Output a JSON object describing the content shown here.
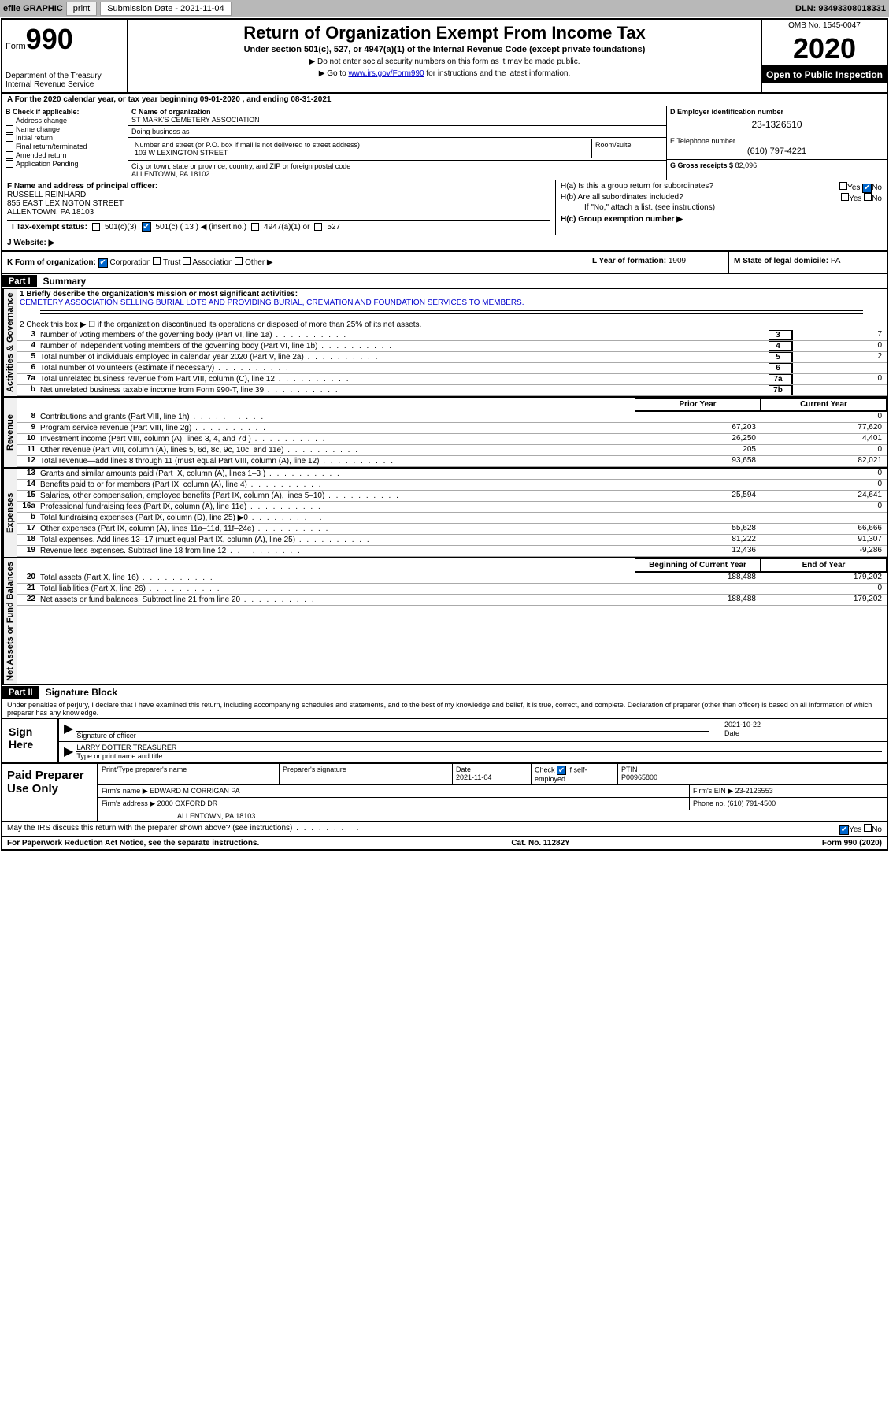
{
  "topbar": {
    "efile": "efile GRAPHIC",
    "print": "print",
    "subdate_label": "Submission Date - 2021-11-04",
    "dln": "DLN: 93493308018331"
  },
  "header": {
    "form_prefix": "Form",
    "form_num": "990",
    "dept": "Department of the Treasury Internal Revenue Service",
    "title": "Return of Organization Exempt From Income Tax",
    "sub": "Under section 501(c), 527, or 4947(a)(1) of the Internal Revenue Code (except private foundations)",
    "note1": "▶ Do not enter social security numbers on this form as it may be made public.",
    "note2_pre": "▶ Go to ",
    "note2_link": "www.irs.gov/Form990",
    "note2_post": " for instructions and the latest information.",
    "omb": "OMB No. 1545-0047",
    "year": "2020",
    "open": "Open to Public Inspection"
  },
  "row_a": "A For the 2020 calendar year, or tax year beginning 09-01-2020   , and ending 08-31-2021",
  "col_b": {
    "label": "B Check if applicable:",
    "items": [
      "Address change",
      "Name change",
      "Initial return",
      "Final return/terminated",
      "Amended return",
      "Application Pending"
    ]
  },
  "col_c": {
    "name_label": "C Name of organization",
    "name": "ST MARK'S CEMETERY ASSOCIATION",
    "dba_label": "Doing business as",
    "street_label": "Number and street (or P.O. box if mail is not delivered to street address)",
    "street": "103 W LEXINGTON STREET",
    "room_label": "Room/suite",
    "city_label": "City or town, state or province, country, and ZIP or foreign postal code",
    "city": "ALLENTOWN, PA  18102"
  },
  "col_d": {
    "ein_label": "D Employer identification number",
    "ein": "23-1326510",
    "phone_label": "E Telephone number",
    "phone": "(610) 797-4221",
    "gross_label": "G Gross receipts $",
    "gross": "82,096"
  },
  "section_f": {
    "label": "F  Name and address of principal officer:",
    "name": "RUSSELL REINHARD",
    "street": "855 EAST LEXINGTON STREET",
    "city": "ALLENTOWN, PA  18103"
  },
  "section_h": {
    "ha": "H(a)  Is this a group return for subordinates?",
    "hb": "H(b)  Are all subordinates included?",
    "hb_note": "If \"No,\" attach a list. (see instructions)",
    "hc": "H(c)  Group exemption number ▶",
    "yes": "Yes",
    "no": "No"
  },
  "tax_exempt": {
    "label": "I   Tax-exempt status:",
    "opt1": "501(c)(3)",
    "opt2": "501(c) ( 13 ) ◀ (insert no.)",
    "opt3": "4947(a)(1) or",
    "opt4": "527"
  },
  "website": "J   Website: ▶",
  "section_k": {
    "label": "K Form of organization:",
    "corp": "Corporation",
    "trust": "Trust",
    "assoc": "Association",
    "other": "Other ▶"
  },
  "section_l": {
    "label": "L Year of formation:",
    "val": "1909"
  },
  "section_m": {
    "label": "M State of legal domicile:",
    "val": "PA"
  },
  "part1": {
    "header": "Part I",
    "title": "Summary",
    "line1_label": "1  Briefly describe the organization's mission or most significant activities:",
    "line1_text": "CEMETERY ASSOCIATION SELLING BURIAL LOTS AND PROVIDING BURIAL, CREMATION AND FOUNDATION SERVICES TO MEMBERS.",
    "line2": "2   Check this box ▶ ☐  if the organization discontinued its operations or disposed of more than 25% of its net assets.",
    "lines_gov": [
      {
        "n": "3",
        "t": "Number of voting members of the governing body (Part VI, line 1a)",
        "box": "3",
        "v": "7"
      },
      {
        "n": "4",
        "t": "Number of independent voting members of the governing body (Part VI, line 1b)",
        "box": "4",
        "v": "0"
      },
      {
        "n": "5",
        "t": "Total number of individuals employed in calendar year 2020 (Part V, line 2a)",
        "box": "5",
        "v": "2"
      },
      {
        "n": "6",
        "t": "Total number of volunteers (estimate if necessary)",
        "box": "6",
        "v": ""
      },
      {
        "n": "7a",
        "t": "Total unrelated business revenue from Part VIII, column (C), line 12",
        "box": "7a",
        "v": "0"
      },
      {
        "n": "b",
        "t": "Net unrelated business taxable income from Form 990-T, line 39",
        "box": "7b",
        "v": ""
      }
    ],
    "col_prior": "Prior Year",
    "col_current": "Current Year",
    "lines_rev": [
      {
        "n": "8",
        "t": "Contributions and grants (Part VIII, line 1h)",
        "v1": "",
        "v2": "0"
      },
      {
        "n": "9",
        "t": "Program service revenue (Part VIII, line 2g)",
        "v1": "67,203",
        "v2": "77,620"
      },
      {
        "n": "10",
        "t": "Investment income (Part VIII, column (A), lines 3, 4, and 7d )",
        "v1": "26,250",
        "v2": "4,401"
      },
      {
        "n": "11",
        "t": "Other revenue (Part VIII, column (A), lines 5, 6d, 8c, 9c, 10c, and 11e)",
        "v1": "205",
        "v2": "0"
      },
      {
        "n": "12",
        "t": "Total revenue—add lines 8 through 11 (must equal Part VIII, column (A), line 12)",
        "v1": "93,658",
        "v2": "82,021"
      }
    ],
    "lines_exp": [
      {
        "n": "13",
        "t": "Grants and similar amounts paid (Part IX, column (A), lines 1–3 )",
        "v1": "",
        "v2": "0"
      },
      {
        "n": "14",
        "t": "Benefits paid to or for members (Part IX, column (A), line 4)",
        "v1": "",
        "v2": "0"
      },
      {
        "n": "15",
        "t": "Salaries, other compensation, employee benefits (Part IX, column (A), lines 5–10)",
        "v1": "25,594",
        "v2": "24,641"
      },
      {
        "n": "16a",
        "t": "Professional fundraising fees (Part IX, column (A), line 11e)",
        "v1": "",
        "v2": "0"
      },
      {
        "n": "b",
        "t": "Total fundraising expenses (Part IX, column (D), line 25) ▶0",
        "v1": "",
        "v2": ""
      },
      {
        "n": "17",
        "t": "Other expenses (Part IX, column (A), lines 11a–11d, 11f–24e)",
        "v1": "55,628",
        "v2": "66,666"
      },
      {
        "n": "18",
        "t": "Total expenses. Add lines 13–17 (must equal Part IX, column (A), line 25)",
        "v1": "81,222",
        "v2": "91,307"
      },
      {
        "n": "19",
        "t": "Revenue less expenses. Subtract line 18 from line 12",
        "v1": "12,436",
        "v2": "-9,286"
      }
    ],
    "col_begin": "Beginning of Current Year",
    "col_end": "End of Year",
    "lines_net": [
      {
        "n": "20",
        "t": "Total assets (Part X, line 16)",
        "v1": "188,488",
        "v2": "179,202"
      },
      {
        "n": "21",
        "t": "Total liabilities (Part X, line 26)",
        "v1": "",
        "v2": "0"
      },
      {
        "n": "22",
        "t": "Net assets or fund balances. Subtract line 21 from line 20",
        "v1": "188,488",
        "v2": "179,202"
      }
    ],
    "vlabel_gov": "Activities & Governance",
    "vlabel_rev": "Revenue",
    "vlabel_exp": "Expenses",
    "vlabel_net": "Net Assets or Fund Balances"
  },
  "part2": {
    "header": "Part II",
    "title": "Signature Block",
    "note": "Under penalties of perjury, I declare that I have examined this return, including accompanying schedules and statements, and to the best of my knowledge and belief, it is true, correct, and complete. Declaration of preparer (other than officer) is based on all information of which preparer has any knowledge."
  },
  "sign": {
    "label": "Sign Here",
    "sig_officer": "Signature of officer",
    "date": "2021-10-22",
    "date_label": "Date",
    "name": "LARRY DOTTER  TREASURER",
    "name_label": "Type or print name and title"
  },
  "prep": {
    "label": "Paid Preparer Use Only",
    "h1": "Print/Type preparer's name",
    "h2": "Preparer's signature",
    "h3_label": "Date",
    "h3": "2021-11-04",
    "h4_label": "Check",
    "h4_sub": "if self-employed",
    "h5_label": "PTIN",
    "h5": "P00965800",
    "firm_name_label": "Firm's name    ▶",
    "firm_name": "EDWARD M CORRIGAN PA",
    "firm_ein_label": "Firm's EIN ▶",
    "firm_ein": "23-2126553",
    "firm_addr_label": "Firm's address ▶",
    "firm_addr1": "2000 OXFORD DR",
    "firm_addr2": "ALLENTOWN, PA  18103",
    "phone_label": "Phone no.",
    "phone": "(610) 791-4500"
  },
  "discuss": "May the IRS discuss this return with the preparer shown above? (see instructions)",
  "footer": {
    "left": "For Paperwork Reduction Act Notice, see the separate instructions.",
    "mid": "Cat. No. 11282Y",
    "right": "Form 990 (2020)"
  }
}
